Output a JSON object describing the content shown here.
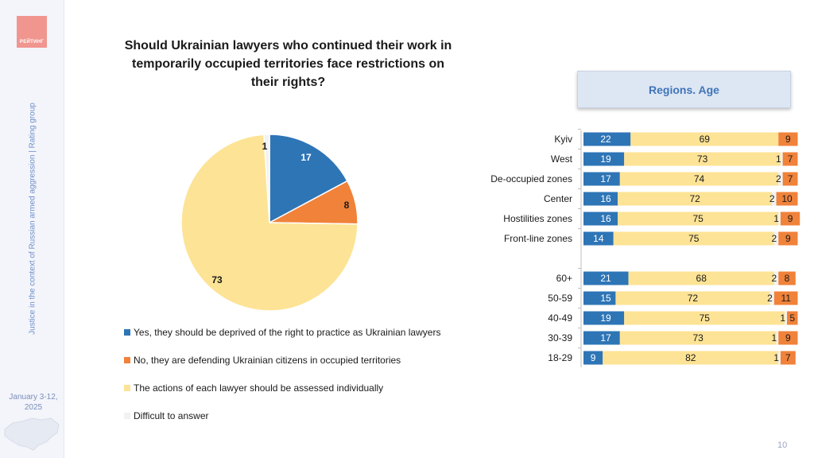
{
  "sidebar": {
    "logo_text": "РЕЙТИНГ",
    "caption": "Justice in the context of Russian armed aggression | Rating group",
    "date_line1": "January 3-12,",
    "date_line2": "2025"
  },
  "title": "Should Ukrainian lawyers who continued their work in temporarily occupied territories face restrictions on their rights?",
  "segment_label": "Regions. Age",
  "page_number": "10",
  "colors": {
    "yes": "#2e75b6",
    "no": "#f0823a",
    "individually": "#fde395",
    "difficult": "#f2f2f2"
  },
  "chart_data": [
    {
      "type": "pie",
      "slices": [
        {
          "label": "Yes, they should be deprived of the right to practice as Ukrainian lawyers",
          "value": 17,
          "color": "#2e75b6"
        },
        {
          "label": "No, they are defending Ukrainian citizens in occupied territories",
          "value": 8,
          "color": "#f0823a"
        },
        {
          "label": "The actions of each lawyer should be assessed individually",
          "value": 73,
          "color": "#fde395"
        },
        {
          "label": "Difficult to answer",
          "value": 1,
          "color": "#f2f2f2"
        }
      ]
    },
    {
      "type": "bar",
      "stacked": true,
      "orientation": "horizontal",
      "categories": [
        "Kyiv",
        "West",
        "De-occupied zones",
        "Center",
        "Hostilities zones",
        "Front-line zones",
        "",
        "60+",
        "50-59",
        "40-49",
        "30-39",
        "18-29"
      ],
      "series": [
        {
          "color": "#2e75b6",
          "values": [
            22,
            19,
            17,
            16,
            16,
            14,
            null,
            21,
            15,
            19,
            17,
            9
          ]
        },
        {
          "color": "#fde395",
          "values": [
            69,
            73,
            74,
            72,
            75,
            75,
            null,
            68,
            72,
            75,
            73,
            82
          ]
        },
        {
          "color": "#f2f2f2",
          "values": [
            null,
            1,
            2,
            2,
            1,
            2,
            null,
            2,
            2,
            1,
            1,
            1
          ]
        },
        {
          "color": "#f0823a",
          "values": [
            9,
            7,
            7,
            10,
            9,
            9,
            null,
            8,
            11,
            5,
            9,
            7
          ]
        }
      ]
    }
  ]
}
